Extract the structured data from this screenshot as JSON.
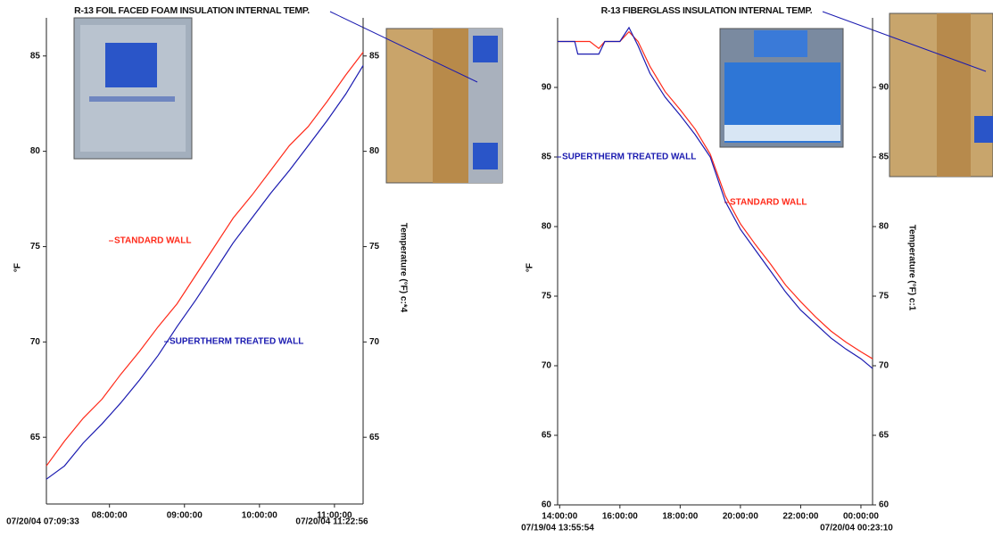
{
  "chart_data": [
    {
      "type": "line",
      "title": "R-13 FOIL FACED FOAM INSULATION INTERNAL TEMP.",
      "y_label": "°F",
      "y2_label": "Temperature (°F) c:*4",
      "x_start_label": "07/20/04 07:09:33",
      "x_end_label": "07/20/04 11:22:56",
      "x": [
        7.159,
        7.4,
        7.65,
        7.9,
        8.15,
        8.4,
        8.65,
        8.9,
        9.15,
        9.4,
        9.65,
        9.9,
        10.15,
        10.4,
        10.65,
        10.9,
        11.15,
        11.382
      ],
      "xlim": [
        7.159,
        11.382
      ],
      "xticks": [
        {
          "value": 8,
          "label": "08:00:00"
        },
        {
          "value": 9,
          "label": "09:00:00"
        },
        {
          "value": 10,
          "label": "10:00:00"
        },
        {
          "value": 11,
          "label": "11:00:00"
        }
      ],
      "ylim": [
        61.5,
        87
      ],
      "yticks": [
        65,
        70,
        75,
        80,
        85
      ],
      "y2lim": [
        61.5,
        87
      ],
      "y2ticks": [
        65,
        70,
        75,
        80,
        85
      ],
      "series": [
        {
          "name": "STANDARD WALL",
          "color": "#ff2a1a",
          "values": [
            63.5,
            64.8,
            66.0,
            67.0,
            68.3,
            69.5,
            70.8,
            72.0,
            73.5,
            75.0,
            76.5,
            77.7,
            79.0,
            80.3,
            81.3,
            82.6,
            84.0,
            85.2
          ]
        },
        {
          "name": "SUPERTHERM TREATED WALL",
          "color": "#1a1ab0",
          "values": [
            62.8,
            63.5,
            64.7,
            65.7,
            66.8,
            68.0,
            69.3,
            70.8,
            72.2,
            73.7,
            75.2,
            76.5,
            77.8,
            79.0,
            80.3,
            81.6,
            83.0,
            84.5
          ]
        }
      ]
    },
    {
      "type": "line",
      "title": "R-13 FIBERGLASS INSULATION INTERNAL TEMP.",
      "y_label": "°F",
      "y2_label": "Temperature (°F) c:1",
      "x_start_label": "07/19/04 13:55:54",
      "x_end_label": "07/20/04 00:23:10",
      "x": [
        13.932,
        14.5,
        14.6,
        15.0,
        15.3,
        15.5,
        16.0,
        16.3,
        16.6,
        17.0,
        17.5,
        18.0,
        18.5,
        19.0,
        19.5,
        20.0,
        20.5,
        21.0,
        21.5,
        22.0,
        22.5,
        23.0,
        23.5,
        24.0,
        24.386
      ],
      "xlim": [
        13.932,
        24.386
      ],
      "xticks": [
        {
          "value": 14,
          "label": "14:00:00"
        },
        {
          "value": 16,
          "label": "16:00:00"
        },
        {
          "value": 18,
          "label": "18:00:00"
        },
        {
          "value": 20,
          "label": "20:00:00"
        },
        {
          "value": 22,
          "label": "22:00:00"
        },
        {
          "value": 24,
          "label": "00:00:00"
        }
      ],
      "ylim": [
        60,
        95
      ],
      "yticks": [
        60,
        65,
        70,
        75,
        80,
        85,
        90
      ],
      "y2lim": [
        60,
        95
      ],
      "y2ticks": [
        60,
        65,
        70,
        75,
        80,
        85,
        90
      ],
      "series": [
        {
          "name": "STANDARD WALL",
          "color": "#ff2a1a",
          "values": [
            93.3,
            93.3,
            93.3,
            93.3,
            92.8,
            93.3,
            93.3,
            94.0,
            93.3,
            91.5,
            89.7,
            88.4,
            87.0,
            85.2,
            82.2,
            80.2,
            78.7,
            77.3,
            75.8,
            74.6,
            73.5,
            72.5,
            71.7,
            71.0,
            70.5
          ]
        },
        {
          "name": "SUPERTHERM TREATED WALL",
          "color": "#1a1ab0",
          "values": [
            93.3,
            93.3,
            92.4,
            92.4,
            92.4,
            93.3,
            93.3,
            94.3,
            93.0,
            91.0,
            89.3,
            88.0,
            86.6,
            85.0,
            81.8,
            79.8,
            78.3,
            76.8,
            75.3,
            74.0,
            73.0,
            72.0,
            71.2,
            70.5,
            69.8
          ]
        }
      ]
    }
  ]
}
